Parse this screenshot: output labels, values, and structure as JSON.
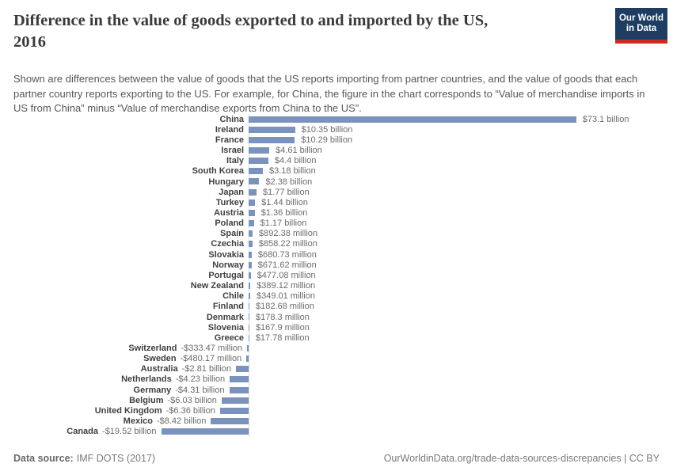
{
  "header": {
    "title_line1": "Difference in the value of goods exported to and imported by the US,",
    "title_line2": "2016",
    "subtitle": "Shown are differences between the value of goods that the US reports importing from partner countries, and the value of goods that each partner country reports exporting to the US. For example, for China, the figure in the chart corresponds to “Value of merchandise imports in US from China” minus “Value of merchandise exports from China to the US”.",
    "logo": {
      "line1": "Our World",
      "line2": "in Data",
      "bg_color": "#1d3d63",
      "accent_color": "#cd2a20"
    }
  },
  "chart_data": {
    "type": "bar",
    "orientation": "horizontal",
    "value_unit": "US dollars",
    "bar_color": "#7b93bc",
    "zero_axis": true,
    "xlim_billion": [
      -20,
      80
    ],
    "rows": [
      {
        "name": "China",
        "value_billion": 73.1,
        "label": "$73.1 billion"
      },
      {
        "name": "Ireland",
        "value_billion": 10.35,
        "label": "$10.35 billion"
      },
      {
        "name": "France",
        "value_billion": 10.29,
        "label": "$10.29 billion"
      },
      {
        "name": "Israel",
        "value_billion": 4.61,
        "label": "$4.61 billion"
      },
      {
        "name": "Italy",
        "value_billion": 4.4,
        "label": "$4.4 billion"
      },
      {
        "name": "South Korea",
        "value_billion": 3.18,
        "label": "$3.18 billion"
      },
      {
        "name": "Hungary",
        "value_billion": 2.38,
        "label": "$2.38 billion"
      },
      {
        "name": "Japan",
        "value_billion": 1.77,
        "label": "$1.77 billion"
      },
      {
        "name": "Turkey",
        "value_billion": 1.44,
        "label": "$1.44 billion"
      },
      {
        "name": "Austria",
        "value_billion": 1.36,
        "label": "$1.36 billion"
      },
      {
        "name": "Poland",
        "value_billion": 1.17,
        "label": "$1.17 billion"
      },
      {
        "name": "Spain",
        "value_billion": 0.89238,
        "label": "$892.38 million"
      },
      {
        "name": "Czechia",
        "value_billion": 0.85822,
        "label": "$858.22 million"
      },
      {
        "name": "Slovakia",
        "value_billion": 0.68073,
        "label": "$680.73 million"
      },
      {
        "name": "Norway",
        "value_billion": 0.67162,
        "label": "$671.62 million"
      },
      {
        "name": "Portugal",
        "value_billion": 0.47708,
        "label": "$477.08 million"
      },
      {
        "name": "New Zealand",
        "value_billion": 0.38912,
        "label": "$389.12 million"
      },
      {
        "name": "Chile",
        "value_billion": 0.34901,
        "label": "$349.01 million"
      },
      {
        "name": "Finland",
        "value_billion": 0.18268,
        "label": "$182.68 million"
      },
      {
        "name": "Denmark",
        "value_billion": 0.1783,
        "label": "$178.3 million"
      },
      {
        "name": "Slovenia",
        "value_billion": 0.1679,
        "label": "$167.9 million"
      },
      {
        "name": "Greece",
        "value_billion": 0.01778,
        "label": "$17.78 million"
      },
      {
        "name": "Switzerland",
        "value_billion": -0.33347,
        "label": "-$333.47 million"
      },
      {
        "name": "Sweden",
        "value_billion": -0.48017,
        "label": "-$480.17 million"
      },
      {
        "name": "Australia",
        "value_billion": -2.81,
        "label": "-$2.81 billion"
      },
      {
        "name": "Netherlands",
        "value_billion": -4.23,
        "label": "-$4.23 billion"
      },
      {
        "name": "Germany",
        "value_billion": -4.31,
        "label": "-$4.31 billion"
      },
      {
        "name": "Belgium",
        "value_billion": -6.03,
        "label": "-$6.03 billion"
      },
      {
        "name": "United Kingdom",
        "value_billion": -6.36,
        "label": "-$6.36 billion"
      },
      {
        "name": "Mexico",
        "value_billion": -8.42,
        "label": "-$8.42 billion"
      },
      {
        "name": "Canada",
        "value_billion": -19.52,
        "label": "-$19.52 billion"
      }
    ]
  },
  "footer": {
    "datasource_label": "Data source:",
    "datasource_value": "IMF DOTS (2017)",
    "link": "OurWorldinData.org/trade-data-sources-discrepancies | CC BY"
  }
}
